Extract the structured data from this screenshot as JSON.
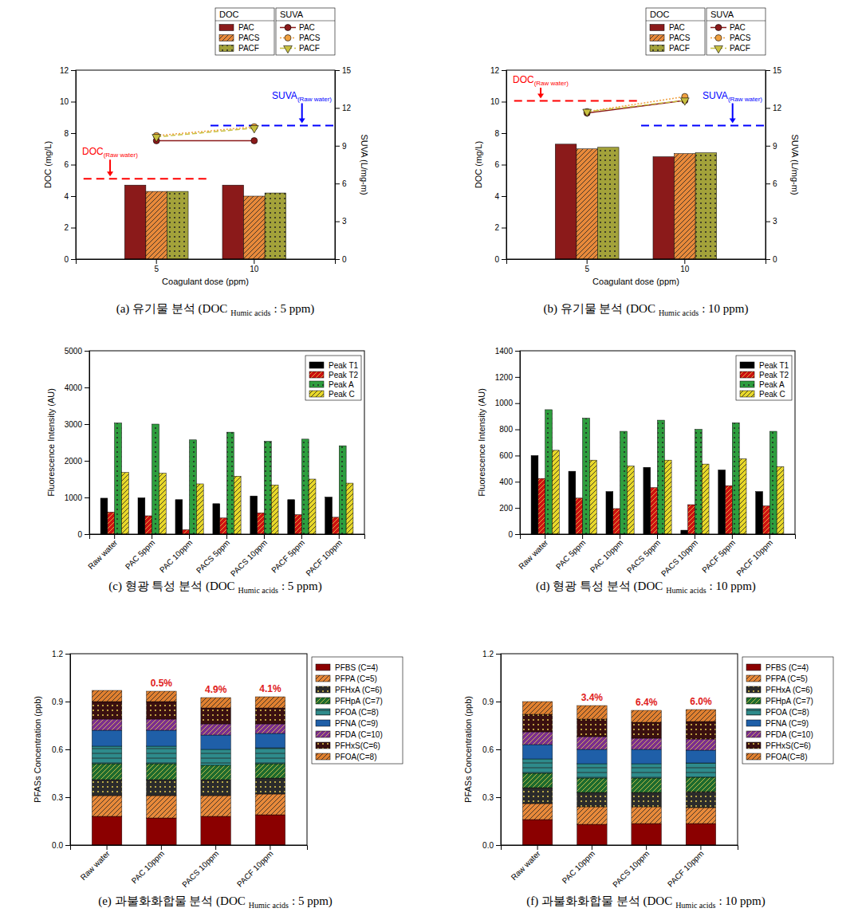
{
  "chart_data": [
    {
      "type": "bar",
      "caption": {
        "text": "(a) 유기물 분석 (DOC",
        "sub": "Humic acids",
        "tail": ": 5 ppm)"
      },
      "x_label": "Coagulant dose (ppm)",
      "y_label": "DOC (mg/L)",
      "y2_label": "SUVA (L/mg-m)",
      "categories": [
        "5",
        "10"
      ],
      "ylim": [
        0,
        12
      ],
      "yticks": [
        0,
        2,
        4,
        6,
        8,
        10,
        12
      ],
      "y2lim": [
        0,
        15
      ],
      "y2ticks": [
        0,
        3,
        6,
        9,
        12,
        15
      ],
      "grid": false,
      "legend": "top",
      "legend_titles": [
        "DOC",
        "SUVA"
      ],
      "series": [
        {
          "name": "PAC",
          "type": "bar",
          "color": "#8b1a1a",
          "values": [
            4.7,
            4.7
          ]
        },
        {
          "name": "PACS",
          "type": "bar",
          "color": "#e8893a",
          "values": [
            4.3,
            4.0
          ]
        },
        {
          "name": "PACF",
          "type": "bar",
          "color": "#a3a23a",
          "values": [
            4.3,
            4.2
          ]
        },
        {
          "name": "PAC",
          "type": "line",
          "axis": "y2",
          "color": "#8b1a1a",
          "marker": "circle",
          "line_style": "solid",
          "values": [
            9.4,
            9.4
          ]
        },
        {
          "name": "PACS",
          "type": "line",
          "axis": "y2",
          "color": "#f0a040",
          "marker": "circle",
          "line_style": "dotted",
          "values": [
            9.8,
            10.5
          ]
        },
        {
          "name": "PACF",
          "type": "line",
          "axis": "y2",
          "color": "#c8c040",
          "marker": "triangle-down",
          "line_style": "dashed",
          "values": [
            9.7,
            10.4
          ]
        }
      ],
      "reference_lines": [
        {
          "label": "DOC",
          "label_sub": "(Raw water)",
          "value": 5.1,
          "axis": "y",
          "color": "#ff0000"
        },
        {
          "label": "SUVA",
          "label_sub": "(Raw water)",
          "value": 10.6,
          "axis": "y2",
          "color": "#0000ff"
        }
      ]
    },
    {
      "type": "bar",
      "caption": {
        "text": "(b) 유기물 분석 (DOC",
        "sub": "Humic acids",
        "tail": ": 10 ppm)"
      },
      "x_label": "Coagulant dose (ppm)",
      "y_label": "DOC (mg/L)",
      "y2_label": "SUVA (L/mg-m)",
      "categories": [
        "5",
        "10"
      ],
      "ylim": [
        0,
        12
      ],
      "yticks": [
        0,
        2,
        4,
        6,
        8,
        10,
        12
      ],
      "y2lim": [
        0,
        15
      ],
      "y2ticks": [
        0,
        3,
        6,
        9,
        12,
        15
      ],
      "grid": false,
      "legend": "top",
      "legend_titles": [
        "DOC",
        "SUVA"
      ],
      "series": [
        {
          "name": "PAC",
          "type": "bar",
          "color": "#8b1a1a",
          "values": [
            7.3,
            6.5
          ]
        },
        {
          "name": "PACS",
          "type": "bar",
          "color": "#e8893a",
          "values": [
            7.0,
            6.7
          ]
        },
        {
          "name": "PACF",
          "type": "bar",
          "color": "#a3a23a",
          "values": [
            7.1,
            6.75
          ]
        },
        {
          "name": "PAC",
          "type": "line",
          "axis": "y2",
          "color": "#8b1a1a",
          "marker": "circle",
          "line_style": "solid",
          "values": [
            11.6,
            12.6
          ]
        },
        {
          "name": "PACS",
          "type": "line",
          "axis": "y2",
          "color": "#f0a040",
          "marker": "circle",
          "line_style": "dotted",
          "values": [
            11.7,
            12.9
          ]
        },
        {
          "name": "PACF",
          "type": "line",
          "axis": "y2",
          "color": "#c8c040",
          "marker": "triangle-down",
          "line_style": "dashed",
          "values": [
            11.7,
            12.6
          ]
        }
      ],
      "reference_lines": [
        {
          "label": "DOC",
          "label_sub": "(Raw water)",
          "value": 10.05,
          "axis": "y",
          "color": "#ff0000"
        },
        {
          "label": "SUVA",
          "label_sub": "(Raw water)",
          "value": 10.6,
          "axis": "y2",
          "color": "#0000ff"
        }
      ]
    },
    {
      "type": "bar",
      "caption": {
        "text": "(c) 형광 특성 분석 (DOC",
        "sub": "Humic acids",
        "tail": ": 5 ppm)"
      },
      "y_label": "Fluorescence Intensity (AU)",
      "categories": [
        "Raw water",
        "PAC 5ppm",
        "PAC 10ppm",
        "PACS 5ppm",
        "PACS 10ppm",
        "PACF 5ppm",
        "PACF 10ppm"
      ],
      "ylim": [
        0,
        5000
      ],
      "yticks": [
        0,
        1000,
        2000,
        3000,
        4000,
        5000
      ],
      "grid": false,
      "legend": "upper right",
      "series": [
        {
          "name": "Peak T1",
          "color": "#000000",
          "values": [
            980,
            990,
            940,
            830,
            1040,
            940,
            1010
          ]
        },
        {
          "name": "Peak T2",
          "color": "#cc1111",
          "values": [
            600,
            500,
            120,
            440,
            580,
            530,
            460
          ]
        },
        {
          "name": "Peak A",
          "color": "#2e9e3e",
          "values": [
            3030,
            3000,
            2570,
            2780,
            2530,
            2590,
            2410
          ]
        },
        {
          "name": "Peak C",
          "color": "#e8d82a",
          "values": [
            1680,
            1660,
            1370,
            1580,
            1340,
            1500,
            1390
          ]
        }
      ]
    },
    {
      "type": "bar",
      "caption": {
        "text": "(d) 형광 특성 분석 (DOC",
        "sub": "Humic acids",
        "tail": ": 10 ppm)"
      },
      "y_label": "Fluorescence Intensity (AU)",
      "categories": [
        "Raw water",
        "PAC 5ppm",
        "PAC 10ppm",
        "PACS 5ppm",
        "PACS 10ppm",
        "PACF 5ppm",
        "PACF 10ppm"
      ],
      "ylim": [
        0,
        1400
      ],
      "yticks": [
        0,
        200,
        400,
        600,
        800,
        1000,
        1200,
        1400
      ],
      "grid": false,
      "legend": "upper right",
      "series": [
        {
          "name": "Peak T1",
          "color": "#000000",
          "values": [
            600,
            480,
            325,
            510,
            30,
            490,
            325
          ]
        },
        {
          "name": "Peak T2",
          "color": "#cc1111",
          "values": [
            425,
            275,
            195,
            355,
            225,
            370,
            215
          ]
        },
        {
          "name": "Peak A",
          "color": "#2e9e3e",
          "values": [
            950,
            885,
            785,
            870,
            800,
            850,
            785
          ]
        },
        {
          "name": "Peak C",
          "color": "#e8d82a",
          "values": [
            640,
            565,
            520,
            565,
            535,
            575,
            515
          ]
        }
      ]
    },
    {
      "type": "bar",
      "stacked": true,
      "caption": {
        "text": "(e) 과불화화합물 분석 (DOC",
        "sub": "Humic acids",
        "tail": ": 5 ppm)"
      },
      "y_label": "PFASs Concentration (ppb)",
      "categories": [
        "Raw water",
        "PAC 10ppm",
        "PACS 10ppm",
        "PACF 10ppm"
      ],
      "ylim": [
        0,
        1.2
      ],
      "yticks": [
        {
          "value": 0,
          "label": "0.0"
        },
        0.3,
        0.6,
        0.9,
        1.2
      ],
      "grid": false,
      "legend": "right",
      "annotations": [
        null,
        "0.5%",
        "4.9%",
        "4.1%"
      ],
      "series": [
        {
          "name": "PFBS (C=4)",
          "color": "#8b0000",
          "values": [
            0.18,
            0.17,
            0.18,
            0.19
          ]
        },
        {
          "name": "PFPA (C=5)",
          "color": "#e8893a",
          "values": [
            0.13,
            0.14,
            0.13,
            0.13
          ]
        },
        {
          "name": "PFHxA (C=6)",
          "color": "#2b2b2b",
          "values": [
            0.1,
            0.1,
            0.1,
            0.1
          ]
        },
        {
          "name": "PFHpA (C=7)",
          "color": "#1e6b2e",
          "values": [
            0.1,
            0.1,
            0.09,
            0.09
          ]
        },
        {
          "name": "PFOA (C=8)",
          "color": "#2e8b8b",
          "values": [
            0.11,
            0.11,
            0.1,
            0.1
          ]
        },
        {
          "name": "PFNA (C=9)",
          "color": "#1f5fa8",
          "values": [
            0.1,
            0.1,
            0.09,
            0.09
          ]
        },
        {
          "name": "PFDA (C=10)",
          "color": "#7b2f8e",
          "values": [
            0.07,
            0.07,
            0.07,
            0.06
          ]
        },
        {
          "name": "PFHxS(C=6)",
          "color": "#3a1010",
          "values": [
            0.11,
            0.11,
            0.1,
            0.1
          ]
        },
        {
          "name": "PFOA(C=8)",
          "color": "#e08030",
          "values": [
            0.07,
            0.065,
            0.065,
            0.07
          ]
        }
      ]
    },
    {
      "type": "bar",
      "stacked": true,
      "caption": {
        "text": "(f) 과불화화합물 분석 (DOC",
        "sub": "Humic acids",
        "tail": ": 10 ppm)"
      },
      "y_label": "PFASs Concentration (ppb)",
      "categories": [
        "Raw water",
        "PAC 10ppm",
        "PACS 10ppm",
        "PACF 10ppm"
      ],
      "ylim": [
        0,
        1.2
      ],
      "yticks": [
        {
          "value": 0,
          "label": "0.0"
        },
        0.3,
        0.6,
        0.9,
        1.2
      ],
      "grid": false,
      "legend": "right",
      "annotations": [
        null,
        "3.4%",
        "6.4%",
        "6.0%"
      ],
      "series": [
        {
          "name": "PFBS (C=4)",
          "color": "#8b0000",
          "values": [
            0.16,
            0.13,
            0.135,
            0.135
          ]
        },
        {
          "name": "PFPA (C=5)",
          "color": "#e8893a",
          "values": [
            0.1,
            0.11,
            0.105,
            0.1
          ]
        },
        {
          "name": "PFHxA (C=6)",
          "color": "#2b2b2b",
          "values": [
            0.1,
            0.09,
            0.09,
            0.1
          ]
        },
        {
          "name": "PFHpA (C=7)",
          "color": "#1e6b2e",
          "values": [
            0.09,
            0.09,
            0.09,
            0.09
          ]
        },
        {
          "name": "PFOA (C=8)",
          "color": "#2e8b8b",
          "values": [
            0.09,
            0.09,
            0.09,
            0.09
          ]
        },
        {
          "name": "PFNA (C=9)",
          "color": "#1f5fa8",
          "values": [
            0.09,
            0.09,
            0.09,
            0.08
          ]
        },
        {
          "name": "PFDA (C=10)",
          "color": "#7b2f8e",
          "values": [
            0.08,
            0.08,
            0.07,
            0.07
          ]
        },
        {
          "name": "PFHxS(C=6)",
          "color": "#3a1010",
          "values": [
            0.11,
            0.11,
            0.1,
            0.11
          ]
        },
        {
          "name": "PFOA(C=8)",
          "color": "#e08030",
          "values": [
            0.08,
            0.085,
            0.075,
            0.075
          ]
        }
      ]
    }
  ]
}
